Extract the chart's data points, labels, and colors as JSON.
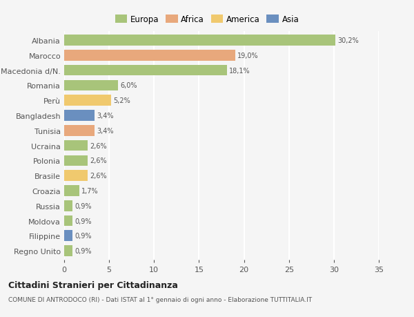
{
  "countries": [
    "Albania",
    "Marocco",
    "Macedonia d/N.",
    "Romania",
    "Perù",
    "Bangladesh",
    "Tunisia",
    "Ucraina",
    "Polonia",
    "Brasile",
    "Croazia",
    "Russia",
    "Moldova",
    "Filippine",
    "Regno Unito"
  ],
  "values": [
    30.2,
    19.0,
    18.1,
    6.0,
    5.2,
    3.4,
    3.4,
    2.6,
    2.6,
    2.6,
    1.7,
    0.9,
    0.9,
    0.9,
    0.9
  ],
  "labels": [
    "30,2%",
    "19,0%",
    "18,1%",
    "6,0%",
    "5,2%",
    "3,4%",
    "3,4%",
    "2,6%",
    "2,6%",
    "2,6%",
    "1,7%",
    "0,9%",
    "0,9%",
    "0,9%",
    "0,9%"
  ],
  "continents": [
    "Europa",
    "Africa",
    "Europa",
    "Europa",
    "America",
    "Asia",
    "Africa",
    "Europa",
    "Europa",
    "America",
    "Europa",
    "Europa",
    "Europa",
    "Asia",
    "Europa"
  ],
  "colors": {
    "Europa": "#a8c47a",
    "Africa": "#e8a87c",
    "America": "#f0c96e",
    "Asia": "#6a8fbf"
  },
  "bg_color": "#f5f5f5",
  "grid_color": "#ffffff",
  "title": "Cittadini Stranieri per Cittadinanza",
  "subtitle": "COMUNE DI ANTRODOCO (RI) - Dati ISTAT al 1° gennaio di ogni anno - Elaborazione TUTTITALIA.IT",
  "xlim": [
    0,
    35
  ],
  "xticks": [
    0,
    5,
    10,
    15,
    20,
    25,
    30,
    35
  ],
  "legend_order": [
    "Europa",
    "Africa",
    "America",
    "Asia"
  ]
}
